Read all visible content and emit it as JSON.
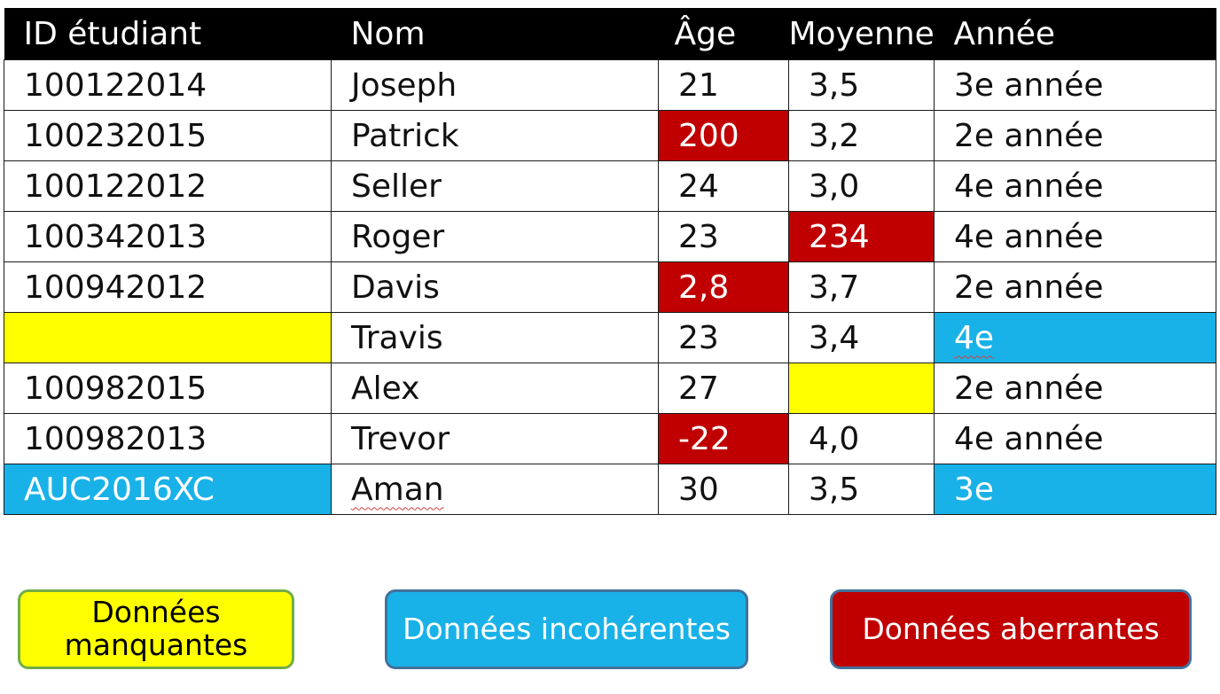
{
  "table": {
    "headers": [
      "ID étudiant",
      "Nom",
      "Âge",
      "Moyenne",
      "Année"
    ],
    "rows": [
      {
        "id": "100122014",
        "name": "Joseph",
        "age": "21",
        "avg": "3,5",
        "year": "3e année"
      },
      {
        "id": "100232015",
        "name": "Patrick",
        "age": "200",
        "avg": "3,2",
        "year": "2e année"
      },
      {
        "id": "100122012",
        "name": "Seller",
        "age": "24",
        "avg": "3,0",
        "year": "4e année"
      },
      {
        "id": "100342013",
        "name": "Roger",
        "age": "23",
        "avg": "234",
        "year": "4e année"
      },
      {
        "id": "100942012",
        "name": "Davis",
        "age": "2,8",
        "avg": "3,7",
        "year": "2e année"
      },
      {
        "id": "",
        "name": "Travis",
        "age": "23",
        "avg": "3,4",
        "year": "4e"
      },
      {
        "id": "100982015",
        "name": "Alex",
        "age": "27",
        "avg": "",
        "year": "2e année"
      },
      {
        "id": "100982013",
        "name": "Trevor",
        "age": "-22",
        "avg": "4,0",
        "year": "4e année"
      },
      {
        "id": "AUC2016XC",
        "name": "Aman",
        "age": "30",
        "avg": "3,5",
        "year": "3e"
      }
    ]
  },
  "legend": {
    "missing": "Données manquantes",
    "inconsistent": "Données incohérentes",
    "outlier": "Données aberrantes"
  },
  "colors": {
    "missing": "#ffff00",
    "inconsistent": "#19b2e8",
    "outlier": "#c00000",
    "header": "#000000"
  }
}
